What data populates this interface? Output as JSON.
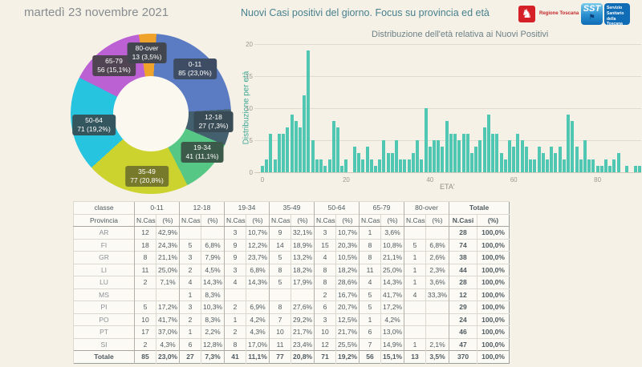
{
  "header": {
    "date": "martedì 23 novembre 2021",
    "title": "Nuovi Casi positivi del giorno. Focus su provincia ed età",
    "logos": {
      "regione_label": "Regione Toscana",
      "sst_abbr": "SST",
      "sst_label": "Servizio Sanitario della Toscana"
    }
  },
  "colors": {
    "background": "#f5f1e6",
    "bar": "#4fc7b2",
    "axis_label_teal": "#3fa796",
    "title_teal": "#47808e",
    "pie_colors": [
      "#5b7bc2",
      "#44606f",
      "#57c785",
      "#ccd32f",
      "#27c4e0",
      "#bb61d4",
      "#f0a32b"
    ],
    "chip_colors": [
      "#3e4d63",
      "#394b55",
      "#3c5a49",
      "#787a2b",
      "#34565e",
      "#514452",
      "#42474f"
    ]
  },
  "chart_data": [
    {
      "type": "pie",
      "subtype": "donut",
      "labels": [
        "0-11",
        "12-18",
        "19-34",
        "35-49",
        "50-64",
        "65-79",
        "80-over"
      ],
      "values": [
        85,
        27,
        41,
        77,
        71,
        56,
        13
      ],
      "percent_labels": [
        "23,0%",
        "7,3%",
        "11,1%",
        "20,8%",
        "19,2%",
        "15,1%",
        "3,5%"
      ],
      "total": 370
    },
    {
      "type": "bar",
      "title": "Distribuzione dell'età relativa ai Nuovi Positivi",
      "xlabel": "ETA'",
      "ylabel": "Distribuzione per età",
      "ylim": [
        0,
        20
      ],
      "yticks": [
        0,
        5,
        10,
        15,
        20
      ],
      "xticks": [
        0,
        20,
        40,
        60,
        80
      ],
      "x_range": [
        0,
        90
      ],
      "grid": true,
      "values": [
        1,
        2,
        6,
        2,
        6,
        6,
        7,
        9,
        8,
        7,
        12,
        19,
        5,
        2,
        2,
        1,
        2,
        8,
        7,
        1,
        2,
        0,
        4,
        3,
        2,
        4,
        2,
        1,
        2,
        5,
        3,
        3,
        5,
        2,
        2,
        2,
        3,
        5,
        2,
        10,
        4,
        5,
        5,
        4,
        8,
        6,
        6,
        5,
        6,
        6,
        3,
        4,
        5,
        7,
        9,
        6,
        6,
        3,
        2,
        5,
        4,
        6,
        5,
        4,
        2,
        2,
        4,
        3,
        2,
        4,
        3,
        4,
        2,
        9,
        8,
        4,
        2,
        5,
        2,
        2,
        1,
        1,
        2,
        1,
        2,
        3,
        0,
        1,
        0,
        1,
        1
      ]
    }
  ],
  "table": {
    "corner_label": "classe",
    "row_header_label": "Provincia",
    "groups": [
      "0-11",
      "12-18",
      "19-34",
      "35-49",
      "50-64",
      "65-79",
      "80-over",
      "Totale"
    ],
    "subheaders": [
      "N.Casi",
      "(%)"
    ],
    "rows": [
      {
        "label": "AR",
        "cells": [
          "12",
          "42,9%",
          "",
          "",
          "3",
          "10,7%",
          "9",
          "32,1%",
          "3",
          "10,7%",
          "1",
          "3,6%",
          "",
          "",
          "28",
          "100,0%"
        ]
      },
      {
        "label": "FI",
        "cells": [
          "18",
          "24,3%",
          "5",
          "6,8%",
          "9",
          "12,2%",
          "14",
          "18,9%",
          "15",
          "20,3%",
          "8",
          "10,8%",
          "5",
          "6,8%",
          "74",
          "100,0%"
        ]
      },
      {
        "label": "GR",
        "cells": [
          "8",
          "21,1%",
          "3",
          "7,9%",
          "9",
          "23,7%",
          "5",
          "13,2%",
          "4",
          "10,5%",
          "8",
          "21,1%",
          "1",
          "2,6%",
          "38",
          "100,0%"
        ]
      },
      {
        "label": "LI",
        "cells": [
          "11",
          "25,0%",
          "2",
          "4,5%",
          "3",
          "6,8%",
          "8",
          "18,2%",
          "8",
          "18,2%",
          "11",
          "25,0%",
          "1",
          "2,3%",
          "44",
          "100,0%"
        ]
      },
      {
        "label": "LU",
        "cells": [
          "2",
          "7,1%",
          "4",
          "14,3%",
          "4",
          "14,3%",
          "5",
          "17,9%",
          "8",
          "28,6%",
          "4",
          "14,3%",
          "1",
          "3,6%",
          "28",
          "100,0%"
        ]
      },
      {
        "label": "MS",
        "cells": [
          "",
          "",
          "1",
          "8,3%",
          "",
          "",
          "",
          "",
          "2",
          "16,7%",
          "5",
          "41,7%",
          "4",
          "33,3%",
          "12",
          "100,0%"
        ]
      },
      {
        "label": "PI",
        "cells": [
          "5",
          "17,2%",
          "3",
          "10,3%",
          "2",
          "6,9%",
          "8",
          "27,6%",
          "6",
          "20,7%",
          "5",
          "17,2%",
          "",
          "",
          "29",
          "100,0%"
        ]
      },
      {
        "label": "PO",
        "cells": [
          "10",
          "41,7%",
          "2",
          "8,3%",
          "1",
          "4,2%",
          "7",
          "29,2%",
          "3",
          "12,5%",
          "1",
          "4,2%",
          "",
          "",
          "24",
          "100,0%"
        ]
      },
      {
        "label": "PT",
        "cells": [
          "17",
          "37,0%",
          "1",
          "2,2%",
          "2",
          "4,3%",
          "10",
          "21,7%",
          "10",
          "21,7%",
          "6",
          "13,0%",
          "",
          "",
          "46",
          "100,0%"
        ]
      },
      {
        "label": "SI",
        "cells": [
          "2",
          "4,3%",
          "6",
          "12,8%",
          "8",
          "17,0%",
          "11",
          "23,4%",
          "12",
          "25,5%",
          "7",
          "14,9%",
          "1",
          "2,1%",
          "47",
          "100,0%"
        ]
      },
      {
        "label": "Totale",
        "is_total": true,
        "cells": [
          "85",
          "23,0%",
          "27",
          "7,3%",
          "41",
          "11,1%",
          "77",
          "20,8%",
          "71",
          "19,2%",
          "56",
          "15,1%",
          "13",
          "3,5%",
          "370",
          "100,0%"
        ]
      }
    ]
  }
}
